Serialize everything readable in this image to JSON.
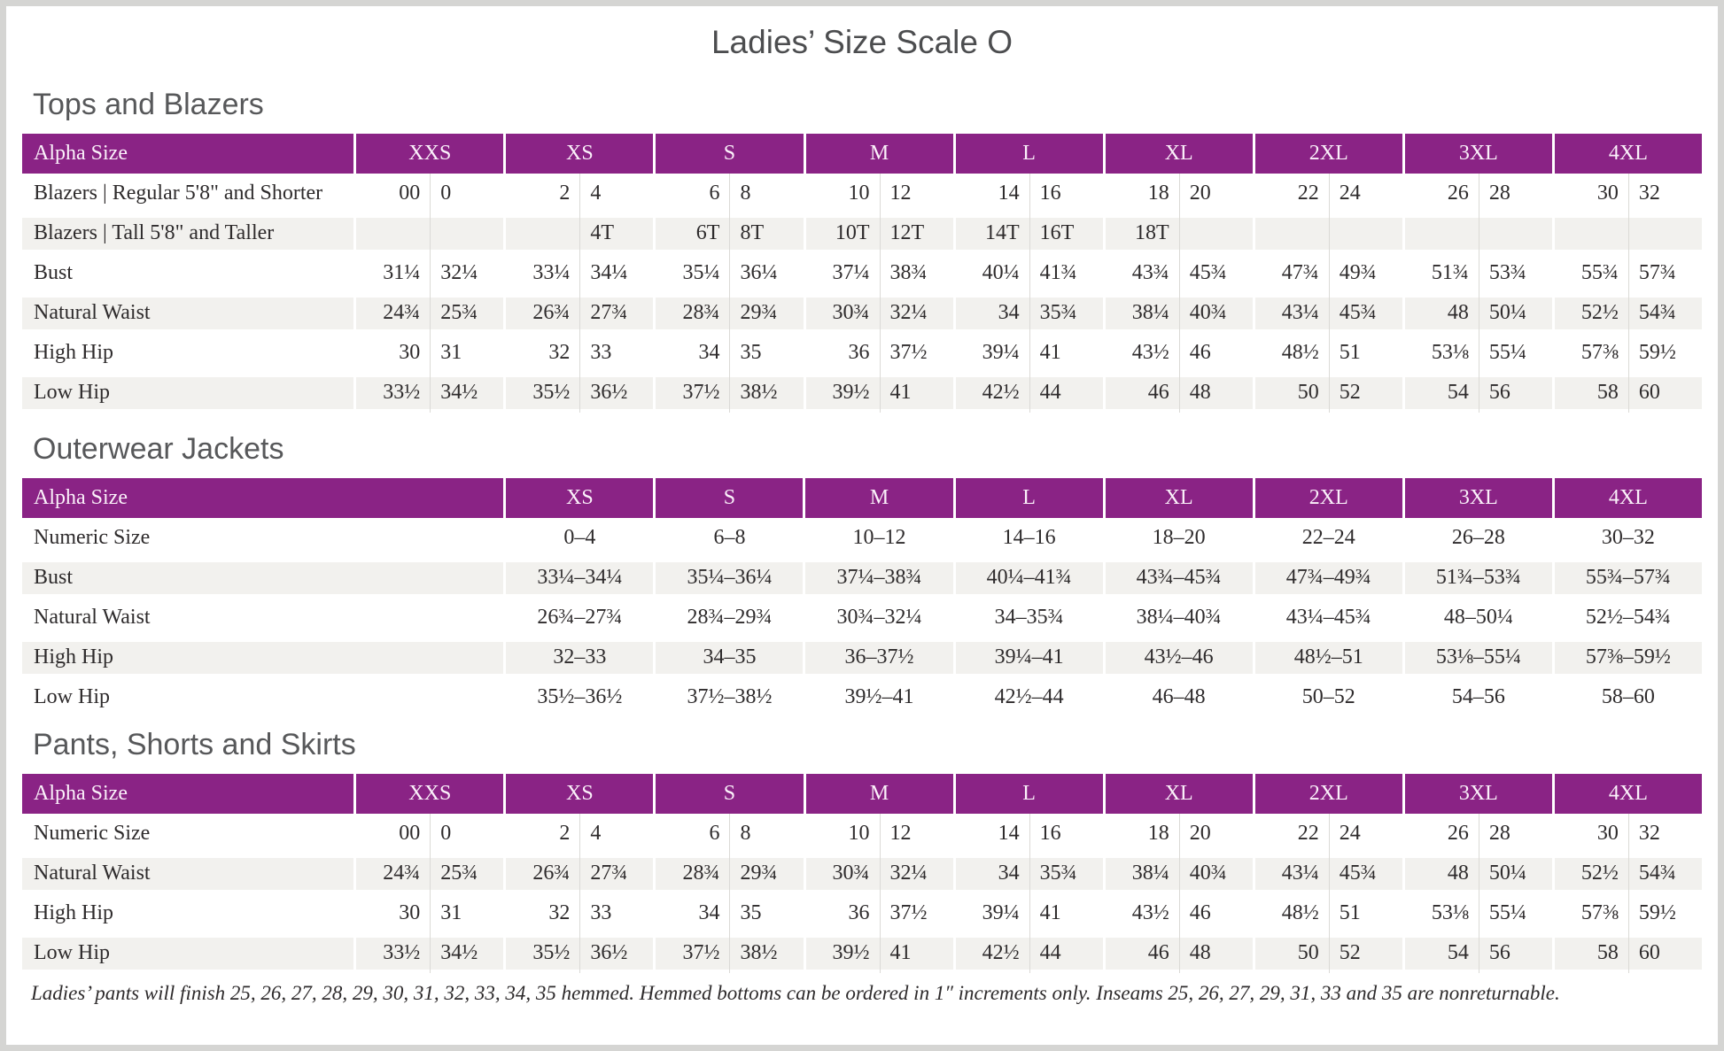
{
  "page_title": "Ladies’ Size Scale O",
  "colors": {
    "header_purple": "#8A2385",
    "header_text": "#FBF1FA",
    "stripe_gray": "#F2F1EE",
    "body_text": "#2E2B2C",
    "heading_gray": "#57585A",
    "frame_gray": "#D5D5D3"
  },
  "footnote": "Ladies’ pants will finish 25, 26, 27, 28, 29, 30, 31, 32, 33, 34, 35 hemmed. Hemmed bottoms can be ordered in 1″ increments only. Inseams 25, 26, 27, 29, 31, 33 and 35 are nonreturnable.",
  "tables": [
    {
      "id": "tops-and-blazers",
      "heading": "Tops and Blazers",
      "layout": "paired",
      "corner_label": "Alpha Size",
      "alpha_sizes": [
        "XXS",
        "XS",
        "S",
        "M",
        "L",
        "XL",
        "2XL",
        "3XL",
        "4XL"
      ],
      "rows": [
        {
          "label": "Blazers | Regular 5'8\" and Shorter",
          "values": [
            "00",
            "0",
            "2",
            "4",
            "6",
            "8",
            "10",
            "12",
            "14",
            "16",
            "18",
            "20",
            "22",
            "24",
            "26",
            "28",
            "30",
            "32"
          ]
        },
        {
          "label": "Blazers | Tall 5'8\" and Taller",
          "values": [
            "",
            "",
            "",
            "4T",
            "6T",
            "8T",
            "10T",
            "12T",
            "14T",
            "16T",
            "18T",
            "",
            "",
            "",
            "",
            "",
            "",
            ""
          ]
        },
        {
          "label": "Bust",
          "values": [
            "31¼",
            "32¼",
            "33¼",
            "34¼",
            "35¼",
            "36¼",
            "37¼",
            "38¾",
            "40¼",
            "41¾",
            "43¾",
            "45¾",
            "47¾",
            "49¾",
            "51¾",
            "53¾",
            "55¾",
            "57¾"
          ]
        },
        {
          "label": "Natural Waist",
          "values": [
            "24¾",
            "25¾",
            "26¾",
            "27¾",
            "28¾",
            "29¾",
            "30¾",
            "32¼",
            "34",
            "35¾",
            "38¼",
            "40¾",
            "43¼",
            "45¾",
            "48",
            "50¼",
            "52½",
            "54¾"
          ]
        },
        {
          "label": "High Hip",
          "values": [
            "30",
            "31",
            "32",
            "33",
            "34",
            "35",
            "36",
            "37½",
            "39¼",
            "41",
            "43½",
            "46",
            "48½",
            "51",
            "53⅛",
            "55¼",
            "57⅜",
            "59½"
          ]
        },
        {
          "label": "Low Hip",
          "values": [
            "33½",
            "34½",
            "35½",
            "36½",
            "37½",
            "38½",
            "39½",
            "41",
            "42½",
            "44",
            "46",
            "48",
            "50",
            "52",
            "54",
            "56",
            "58",
            "60"
          ]
        }
      ]
    },
    {
      "id": "outerwear-jackets",
      "heading": "Outerwear Jackets",
      "layout": "single",
      "corner_label": "Alpha Size",
      "alpha_sizes": [
        "XS",
        "S",
        "M",
        "L",
        "XL",
        "2XL",
        "3XL",
        "4XL"
      ],
      "rows": [
        {
          "label": "Numeric Size",
          "values": [
            "0–4",
            "6–8",
            "10–12",
            "14–16",
            "18–20",
            "22–24",
            "26–28",
            "30–32"
          ]
        },
        {
          "label": "Bust",
          "values": [
            "33¼–34¼",
            "35¼–36¼",
            "37¼–38¾",
            "40¼–41¾",
            "43¾–45¾",
            "47¾–49¾",
            "51¾–53¾",
            "55¾–57¾"
          ]
        },
        {
          "label": "Natural Waist",
          "values": [
            "26¾–27¾",
            "28¾–29¾",
            "30¾–32¼",
            "34–35¾",
            "38¼–40¾",
            "43¼–45¾",
            "48–50¼",
            "52½–54¾"
          ]
        },
        {
          "label": "High Hip",
          "values": [
            "32–33",
            "34–35",
            "36–37½",
            "39¼–41",
            "43½–46",
            "48½–51",
            "53⅛–55¼",
            "57⅜–59½"
          ]
        },
        {
          "label": "Low Hip",
          "values": [
            "35½–36½",
            "37½–38½",
            "39½–41",
            "42½–44",
            "46–48",
            "50–52",
            "54–56",
            "58–60"
          ]
        }
      ]
    },
    {
      "id": "pants-shorts-skirts",
      "heading": "Pants, Shorts and Skirts",
      "layout": "paired",
      "corner_label": "Alpha Size",
      "alpha_sizes": [
        "XXS",
        "XS",
        "S",
        "M",
        "L",
        "XL",
        "2XL",
        "3XL",
        "4XL"
      ],
      "rows": [
        {
          "label": "Numeric Size",
          "values": [
            "00",
            "0",
            "2",
            "4",
            "6",
            "8",
            "10",
            "12",
            "14",
            "16",
            "18",
            "20",
            "22",
            "24",
            "26",
            "28",
            "30",
            "32"
          ]
        },
        {
          "label": "Natural Waist",
          "values": [
            "24¾",
            "25¾",
            "26¾",
            "27¾",
            "28¾",
            "29¾",
            "30¾",
            "32¼",
            "34",
            "35¾",
            "38¼",
            "40¾",
            "43¼",
            "45¾",
            "48",
            "50¼",
            "52½",
            "54¾"
          ]
        },
        {
          "label": "High Hip",
          "values": [
            "30",
            "31",
            "32",
            "33",
            "34",
            "35",
            "36",
            "37½",
            "39¼",
            "41",
            "43½",
            "46",
            "48½",
            "51",
            "53⅛",
            "55¼",
            "57⅜",
            "59½"
          ]
        },
        {
          "label": "Low Hip",
          "values": [
            "33½",
            "34½",
            "35½",
            "36½",
            "37½",
            "38½",
            "39½",
            "41",
            "42½",
            "44",
            "46",
            "48",
            "50",
            "52",
            "54",
            "56",
            "58",
            "60"
          ]
        }
      ]
    }
  ]
}
